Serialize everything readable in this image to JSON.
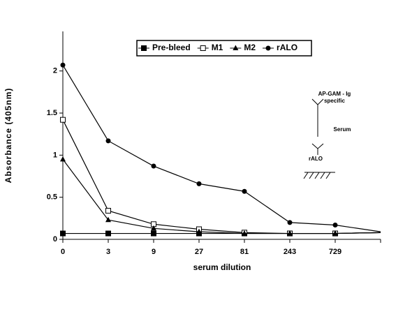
{
  "chart_data": {
    "type": "line",
    "categories": [
      "0",
      "3",
      "9",
      "27",
      "81",
      "243",
      "729",
      null
    ],
    "series": [
      {
        "name": "Pre-bleed",
        "color": "#000000",
        "marker": "square",
        "values": [
          0.07,
          0.07,
          0.07,
          0.07,
          0.07,
          0.07,
          0.07,
          0.08
        ]
      },
      {
        "name": "M1",
        "color": "#000000",
        "marker": "open-square",
        "values": [
          1.42,
          0.34,
          0.18,
          0.12,
          0.08,
          0.07,
          0.07,
          0.08
        ]
      },
      {
        "name": "M2",
        "color": "#000000",
        "marker": "triangle",
        "values": [
          0.95,
          0.23,
          0.13,
          0.09,
          0.07,
          0.07,
          0.07,
          0.08
        ]
      },
      {
        "name": "rALO",
        "color": "#000000",
        "marker": "circle",
        "values": [
          2.07,
          1.17,
          0.87,
          0.66,
          0.57,
          0.2,
          0.17,
          0.09
        ]
      }
    ],
    "x_label": "serum dilution",
    "y_label": "Absorbance (405nm)",
    "ylim": [
      0,
      2.47
    ],
    "yticks": [
      0,
      0.5,
      1,
      1.5,
      2
    ],
    "grid": false,
    "legend": "top",
    "annotations": [
      "AP-GAM - Ig",
      "specific",
      "Serum",
      "rALO"
    ]
  }
}
